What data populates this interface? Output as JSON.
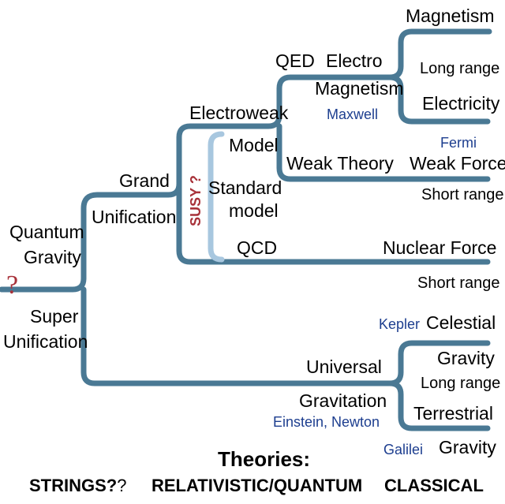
{
  "colors": {
    "branch": "#4a7994",
    "light_branch": "#a8c7df",
    "name_blue": "#1d3e8f",
    "question_red": "#a8323a"
  },
  "labels": {
    "quantum": "Quantum",
    "gravity_qg": "Gravity",
    "question_mark": "?",
    "super": "Super",
    "unification_super": "Unification",
    "grand": "Grand",
    "unification_grand": "Unification",
    "electroweak": "Electroweak",
    "model": "Model",
    "standard": "Standard",
    "model_lower": "model",
    "susy": "SUSY ?",
    "qed": "QED",
    "electro": "Electro",
    "magnetism_em": "Magnetism",
    "maxwell": "Maxwell",
    "magnetism": "Magnetism",
    "long_range_em": "Long range",
    "electricity": "Electricity",
    "weak_theory": "Weak Theory",
    "fermi": "Fermi",
    "weak_force": "Weak Force",
    "short_range_weak": "Short range",
    "qcd": "QCD",
    "nuclear_force": "Nuclear Force",
    "short_range_nuclear": "Short range",
    "kepler": "Kepler",
    "celestial": "Celestial",
    "gravity_celestial": "Gravity",
    "long_range_gravity": "Long range",
    "universal": "Universal",
    "gravitation": "Gravitation",
    "einstein_newton": "Einstein, Newton",
    "terrestrial": "Terrestrial",
    "galilei": "Galilei",
    "gravity_terrestrial": "Gravity"
  },
  "footer": {
    "theories": "Theories:",
    "strings": "STRINGS?",
    "strings_q": "?",
    "relativistic": "RELATIVISTIC/QUANTUM",
    "classical": "CLASSICAL"
  }
}
